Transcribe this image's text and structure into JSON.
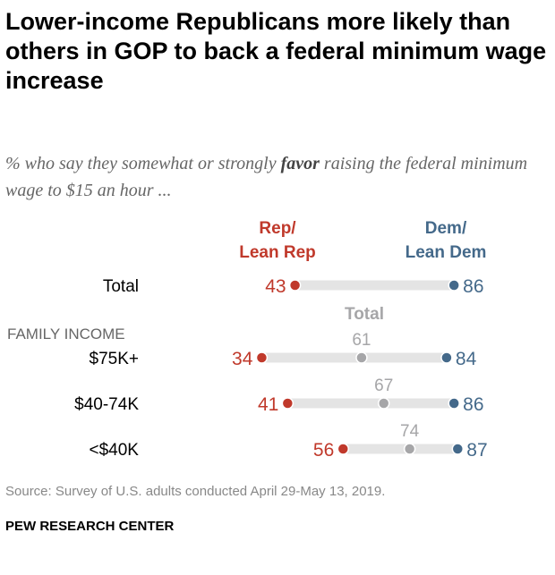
{
  "title": "Lower-income Republicans more likely than others in GOP to back a federal minimum wage increase",
  "subtitle": {
    "pre": "% who say they somewhat or strongly ",
    "emph": "favor",
    "post": " raising the federal minimum wage to $15 an hour ..."
  },
  "source": "Source: Survey of U.S. adults conducted April 29-May 13, 2019.",
  "brand": "PEW RESEARCH CENTER",
  "chart_data": {
    "type": "dot",
    "series_labels": {
      "rep": [
        "Rep/",
        "Lean Rep"
      ],
      "dem": [
        "Dem/",
        "Lean Dem"
      ],
      "total": "Total"
    },
    "group_label": "FAMILY INCOME",
    "colors": {
      "rep": "#c0392b",
      "dem": "#44698a",
      "total": "#a6a6a8",
      "bar": "#e4e4e4"
    },
    "rows": [
      {
        "label": "Total",
        "rep": 43,
        "dem": 86,
        "total": null
      },
      {
        "label": "$75K+",
        "rep": 34,
        "dem": 84,
        "total": 61
      },
      {
        "label": "$40-74K",
        "rep": 41,
        "dem": 86,
        "total": 67
      },
      {
        "label": "<$40K",
        "rep": 56,
        "dem": 87,
        "total": 74
      }
    ]
  }
}
